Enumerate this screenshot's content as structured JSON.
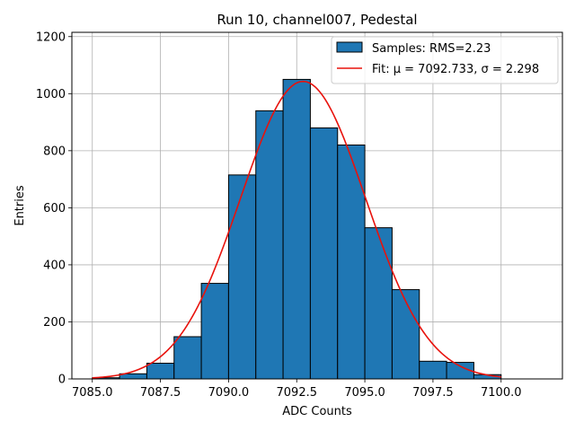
{
  "chart_data": {
    "type": "bar",
    "title": "Run 10, channel007, Pedestal",
    "xlabel": "ADC Counts",
    "ylabel": "Entries",
    "xlim": [
      7084.25,
      7102.25
    ],
    "ylim": [
      0,
      1215
    ],
    "grid": true,
    "legend_position": "top-right",
    "x_ticks": [
      7085.0,
      7087.5,
      7090.0,
      7092.5,
      7095.0,
      7097.5,
      7100.0
    ],
    "x_tick_labels": [
      "7085.0",
      "7087.5",
      "7090.0",
      "7092.5",
      "7095.0",
      "7097.5",
      "7100.0"
    ],
    "y_ticks": [
      0,
      200,
      400,
      600,
      800,
      1000,
      1200
    ],
    "y_tick_labels": [
      "0",
      "200",
      "400",
      "600",
      "800",
      "1000",
      "1200"
    ],
    "histogram": {
      "label": "Samples: RMS=2.23",
      "color": "#1f77b4",
      "edge_color": "#000000",
      "bin_edges": [
        7085,
        7086,
        7087,
        7088,
        7089,
        7090,
        7091,
        7092,
        7093,
        7094,
        7095,
        7096,
        7097,
        7098,
        7099,
        7100
      ],
      "counts": [
        4,
        18,
        55,
        148,
        335,
        715,
        940,
        1050,
        880,
        820,
        530,
        313,
        62,
        58,
        15
      ]
    },
    "fit": {
      "label": "Fit: μ = 7092.733, σ = 2.298",
      "color": "#e8120c",
      "mu": 7092.733,
      "sigma": 2.298,
      "amplitude": 1043,
      "x_range": [
        7085,
        7100
      ]
    }
  }
}
